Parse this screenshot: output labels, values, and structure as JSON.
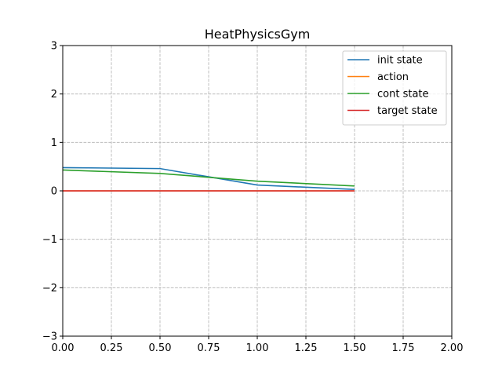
{
  "chart_data": {
    "type": "line",
    "title": "HeatPhysicsGym",
    "xlabel": "",
    "ylabel": "",
    "xlim": [
      0.0,
      2.0
    ],
    "ylim": [
      -3,
      3
    ],
    "x_ticks": [
      "0.00",
      "0.25",
      "0.50",
      "0.75",
      "1.00",
      "1.25",
      "1.50",
      "1.75",
      "2.00"
    ],
    "y_ticks": [
      "−3",
      "−2",
      "−1",
      "0",
      "1",
      "2",
      "3"
    ],
    "grid": true,
    "legend_position": "top-right",
    "series": [
      {
        "name": "init state",
        "color": "#1f77b4",
        "x": [
          0.0,
          0.5,
          1.0,
          1.5
        ],
        "y": [
          0.48,
          0.46,
          0.12,
          0.03
        ]
      },
      {
        "name": "action",
        "color": "#ff7f0e",
        "x": [
          0.0,
          0.5,
          1.0,
          1.5
        ],
        "y": [
          0.0,
          0.0,
          0.0,
          0.0
        ]
      },
      {
        "name": "cont state",
        "color": "#2ca02c",
        "x": [
          0.0,
          0.5,
          1.0,
          1.5
        ],
        "y": [
          0.43,
          0.36,
          0.2,
          0.1
        ]
      },
      {
        "name": "target state",
        "color": "#d62728",
        "x": [
          0.0,
          0.5,
          1.0,
          1.5
        ],
        "y": [
          0.0,
          0.0,
          0.0,
          0.0
        ]
      }
    ]
  }
}
